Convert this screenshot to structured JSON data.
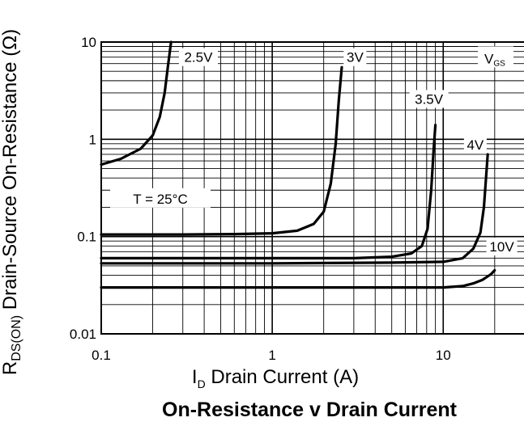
{
  "chart_data": {
    "type": "line",
    "title": "On-Resistance v Drain Current",
    "xlabel": {
      "main": "I",
      "sub": "D",
      "rest": " Drain Current (A)"
    },
    "ylabel": {
      "main": "R",
      "sub": "DS(ON)",
      "rest": " Drain-Source On-Resistance (Ω)"
    },
    "x_scale": "log",
    "y_scale": "log",
    "xlim": [
      0.1,
      30
    ],
    "ylim": [
      0.01,
      10
    ],
    "x_ticks": [
      {
        "value": 0.1,
        "label": "0.1"
      },
      {
        "value": 1,
        "label": "1"
      },
      {
        "value": 10,
        "label": "10"
      }
    ],
    "y_ticks": [
      {
        "value": 0.01,
        "label": "0.01"
      },
      {
        "value": 0.1,
        "label": "0.1"
      },
      {
        "value": 1,
        "label": "1"
      },
      {
        "value": 10,
        "label": "10"
      }
    ],
    "grid": true,
    "annotations": [
      {
        "name": "vgs-header",
        "text": "V",
        "sub": "GS"
      },
      {
        "name": "temperature",
        "text": "T = 25°C"
      }
    ],
    "series": [
      {
        "name": "2.5V",
        "x": [
          0.1,
          0.13,
          0.17,
          0.2,
          0.22,
          0.235,
          0.245,
          0.252,
          0.256
        ],
        "y": [
          0.55,
          0.63,
          0.8,
          1.1,
          1.7,
          3.0,
          5.5,
          8.0,
          10
        ]
      },
      {
        "name": "3V",
        "x": [
          0.1,
          0.3,
          0.6,
          1.0,
          1.4,
          1.75,
          2.0,
          2.2,
          2.35,
          2.45,
          2.55
        ],
        "y": [
          0.105,
          0.105,
          0.106,
          0.108,
          0.115,
          0.135,
          0.18,
          0.35,
          0.9,
          2.5,
          5.5
        ]
      },
      {
        "name": "3.5V",
        "x": [
          0.1,
          1,
          3,
          5,
          6.5,
          7.5,
          8.1,
          8.5,
          8.8,
          9.0
        ],
        "y": [
          0.06,
          0.06,
          0.06,
          0.062,
          0.067,
          0.08,
          0.12,
          0.3,
          0.8,
          1.4
        ]
      },
      {
        "name": "4V",
        "x": [
          0.1,
          1,
          5,
          10,
          13,
          15,
          16.5,
          17.3,
          17.8,
          18.2
        ],
        "y": [
          0.053,
          0.053,
          0.054,
          0.055,
          0.06,
          0.075,
          0.11,
          0.2,
          0.4,
          0.7
        ]
      },
      {
        "name": "10V",
        "x": [
          0.1,
          1,
          5,
          10,
          13,
          15,
          17,
          19,
          20
        ],
        "y": [
          0.03,
          0.03,
          0.03,
          0.03,
          0.031,
          0.033,
          0.036,
          0.041,
          0.045
        ]
      }
    ]
  }
}
